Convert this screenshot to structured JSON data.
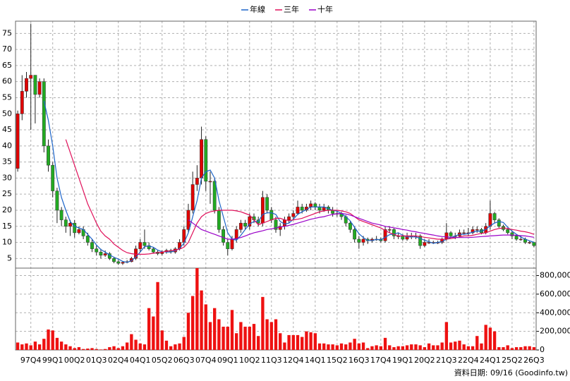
{
  "chart_data": {
    "type": "candlestick",
    "categories": [
      null,
      null,
      null,
      "97Q4",
      null,
      null,
      null,
      null,
      "99Q1",
      null,
      null,
      null,
      null,
      "00Q2",
      null,
      null,
      null,
      null,
      "01Q3",
      null,
      null,
      null,
      null,
      "02Q4",
      null,
      null,
      null,
      null,
      "04Q1",
      null,
      null,
      null,
      null,
      "05Q2",
      null,
      null,
      null,
      null,
      "06Q3",
      null,
      null,
      null,
      null,
      "07Q4",
      null,
      null,
      null,
      null,
      "09Q1",
      null,
      null,
      null,
      null,
      "10Q2",
      null,
      null,
      null,
      null,
      "11Q3",
      null,
      null,
      null,
      null,
      "12Q4",
      null,
      null,
      null,
      null,
      "14Q1",
      null,
      null,
      null,
      null,
      "15Q2",
      null,
      null,
      null,
      null,
      "16Q3",
      null,
      null,
      null,
      null,
      "17Q4",
      null,
      null,
      null,
      null,
      "19Q1",
      null,
      null,
      null,
      null,
      "20Q2",
      null,
      null,
      null,
      null,
      "21Q3",
      null,
      null,
      null,
      null,
      "22Q4",
      null,
      null,
      null,
      null,
      "24Q1",
      null,
      null,
      null,
      null,
      "25Q2",
      null,
      null,
      null,
      null,
      "26Q3"
    ],
    "open": [
      33,
      50,
      57,
      61,
      62,
      56,
      60,
      40,
      34,
      26,
      20,
      17,
      15,
      16,
      13,
      14,
      12,
      10,
      8,
      7,
      6,
      6.5,
      5,
      4,
      3.5,
      3.8,
      4,
      5,
      8,
      10,
      9,
      8,
      7,
      6.5,
      7,
      7.5,
      7,
      8,
      10,
      14,
      20,
      28,
      30,
      42,
      29,
      29,
      20,
      14,
      10,
      8,
      11,
      14,
      16,
      15,
      18,
      17,
      16,
      24,
      20,
      17,
      14,
      15,
      17,
      18,
      19,
      21,
      20,
      21,
      22,
      21,
      20,
      21,
      20,
      19,
      19,
      18,
      16,
      14,
      11,
      10,
      11,
      10.5,
      11,
      11,
      10.5,
      14,
      14,
      12,
      12,
      11,
      12,
      12,
      12,
      9,
      10,
      10,
      10,
      10,
      11,
      13,
      12,
      12,
      13,
      13,
      13,
      14,
      14,
      13,
      15,
      19,
      17,
      15,
      14,
      13,
      12,
      11,
      11,
      10,
      10
    ],
    "high": [
      51,
      62,
      63,
      78,
      62,
      61,
      61,
      42,
      35,
      27,
      21,
      18,
      17,
      17,
      15,
      15,
      13,
      11,
      9,
      8,
      7.5,
      7,
      5.5,
      4.5,
      4.2,
      4.5,
      5.5,
      9,
      11,
      14,
      10,
      8.5,
      7.5,
      7.5,
      8,
      8,
      8.5,
      11,
      15,
      22,
      32,
      34,
      46,
      43,
      32,
      30,
      21,
      15,
      11,
      12,
      15,
      17,
      17,
      19,
      19,
      18,
      26,
      25,
      21,
      18,
      16,
      18,
      19,
      20,
      23,
      22,
      22,
      23,
      22.5,
      22,
      22,
      21.5,
      21,
      20,
      19.5,
      18.5,
      16.5,
      15,
      12,
      12,
      11.5,
      11.5,
      12,
      11.5,
      15,
      15,
      14.5,
      13,
      12.5,
      13,
      13,
      13,
      12.5,
      11,
      11,
      10.5,
      10.5,
      11.5,
      16,
      13.5,
      13,
      14,
      14,
      14.5,
      15,
      15,
      14.5,
      16,
      23,
      19.5,
      17.5,
      15.5,
      14.5,
      13.5,
      12.5,
      12,
      11.5,
      10.5,
      10
    ],
    "low": [
      32,
      48,
      55,
      45,
      47,
      55,
      38,
      32,
      24,
      16,
      15,
      13,
      12,
      11.5,
      12.5,
      11,
      9,
      7,
      6,
      5,
      5.5,
      4.5,
      3.5,
      3,
      3,
      3.5,
      3.8,
      4.5,
      7,
      8,
      7.5,
      6.5,
      6,
      6,
      6.5,
      6.5,
      6.5,
      7.5,
      9,
      13,
      19,
      26,
      28,
      26,
      22,
      19,
      13,
      9,
      6,
      7.5,
      10,
      13,
      14,
      14,
      16,
      15,
      15,
      19,
      16,
      13,
      12,
      14,
      16,
      17,
      18.5,
      19,
      19.5,
      20,
      20,
      19,
      19.5,
      19,
      18,
      18,
      17,
      15,
      13,
      10,
      8,
      9,
      9.5,
      10,
      10.5,
      10,
      10,
      13,
      11,
      11,
      10.5,
      10.5,
      11,
      11,
      8,
      8.5,
      9.5,
      9.5,
      9.5,
      9.5,
      10.5,
      11.5,
      11,
      11.5,
      12.5,
      12,
      12.5,
      13,
      12.5,
      12.5,
      14,
      16,
      14.5,
      13.5,
      12.5,
      11,
      10.5,
      10.5,
      9.5,
      9.5,
      8.5
    ],
    "close": [
      50,
      57,
      61,
      62,
      56,
      60,
      40,
      34,
      26,
      20,
      17,
      15,
      16,
      13,
      14,
      12,
      10,
      8,
      7,
      6,
      6.5,
      5,
      4,
      3.5,
      3.8,
      4,
      5,
      8,
      10,
      9,
      8,
      7,
      6.5,
      7,
      7.5,
      7,
      8,
      10,
      14,
      20,
      28,
      30,
      42,
      29,
      29,
      20,
      14,
      10,
      8,
      11,
      14,
      16,
      15,
      18,
      17,
      16,
      24,
      20,
      17,
      14,
      15,
      17,
      18,
      19,
      21,
      20,
      21,
      22,
      21,
      20,
      21,
      20,
      19,
      19,
      18,
      16,
      14,
      11,
      10,
      11,
      10.5,
      11,
      11,
      10.5,
      14,
      14,
      12,
      12,
      11,
      12,
      12,
      12,
      9,
      10,
      10,
      10,
      10,
      11,
      13,
      12,
      12,
      13,
      13,
      13,
      14,
      14,
      13,
      15,
      19,
      17,
      15,
      14,
      13,
      12,
      11,
      11,
      10,
      10,
      9
    ],
    "up_color": "#e00000",
    "down_color": "#22aa22",
    "series": [
      {
        "name": "年線",
        "color": "#1c64c8",
        "values": [
          null,
          null,
          null,
          null,
          null,
          null,
          54,
          48,
          40,
          30,
          24,
          20,
          16.5,
          15,
          14.5,
          14,
          12.5,
          11,
          9.2,
          7.8,
          7,
          6.1,
          5.4,
          4.8,
          4.1,
          3.8,
          4.3,
          5.4,
          7,
          8.7,
          8.9,
          8.5,
          7.6,
          7.1,
          7,
          7,
          7.4,
          8.1,
          9.8,
          13,
          18,
          23,
          30,
          32,
          32.5,
          30,
          23,
          18,
          13,
          11,
          10.7,
          12.2,
          14,
          15.7,
          16.5,
          16.5,
          18.7,
          19.2,
          19.2,
          18.7,
          16.5,
          15.7,
          16,
          17.2,
          18.7,
          19.5,
          20.2,
          21,
          21,
          21,
          21,
          20.5,
          20,
          19.7,
          19,
          18,
          16.7,
          14.7,
          12.7,
          11.5,
          10.6,
          10.6,
          10.9,
          10.8,
          11.6,
          12.4,
          12.6,
          13,
          12.2,
          11.7,
          11.7,
          11.7,
          11.2,
          10.7,
          10.2,
          9.7,
          10,
          10.2,
          11,
          11.5,
          12,
          12.5,
          12.5,
          12.7,
          13.2,
          13.5,
          13.5,
          14,
          15.2,
          16,
          16.5,
          16.2,
          14.7,
          13.5,
          12.5,
          11.7,
          11,
          10.5,
          10
        ]
      },
      {
        "name": "三年",
        "color": "#e0105a",
        "values": [
          null,
          null,
          null,
          null,
          null,
          null,
          null,
          null,
          null,
          null,
          null,
          42,
          38,
          34,
          30,
          26,
          22,
          19,
          16,
          13.5,
          12,
          11,
          9.5,
          8.5,
          7.5,
          6.8,
          6.5,
          6.3,
          6.3,
          6.3,
          6.4,
          6.6,
          6.8,
          7,
          7.2,
          7.4,
          7.6,
          7.9,
          8.5,
          10,
          13,
          16,
          18,
          19,
          19.5,
          19.8,
          20,
          20,
          20,
          20,
          19.8,
          19.5,
          19,
          18.5,
          17,
          15.5,
          16,
          16.5,
          17,
          17.5,
          17.5,
          17,
          16.8,
          17,
          17.2,
          17.5,
          18,
          18.5,
          19,
          19.5,
          19.8,
          20,
          20,
          20,
          19.8,
          19.5,
          19,
          18,
          17,
          16.5,
          16,
          15.5,
          15,
          14.5,
          13.7,
          13,
          12.5,
          12,
          12,
          12,
          12,
          12,
          11.8,
          11.6,
          11.4,
          11.2,
          11,
          11,
          11,
          11.2,
          11.4,
          11.7,
          12,
          12,
          12.2,
          12.5,
          12.8,
          13,
          13.5,
          14,
          14.3,
          14.5,
          14.3,
          14,
          13.8,
          13.5,
          13.3,
          13,
          12.5
        ]
      },
      {
        "name": "十年",
        "color": "#9a00c8",
        "values": [
          null,
          null,
          null,
          null,
          null,
          null,
          null,
          null,
          null,
          null,
          null,
          null,
          null,
          null,
          null,
          null,
          null,
          null,
          null,
          null,
          null,
          null,
          null,
          null,
          null,
          null,
          null,
          null,
          null,
          null,
          null,
          null,
          null,
          null,
          null,
          null,
          null,
          null,
          null,
          17,
          16,
          15,
          14,
          13.5,
          13,
          12.5,
          12,
          11.5,
          11,
          11,
          11.2,
          11.5,
          12,
          12.5,
          13,
          13.3,
          13.6,
          14,
          14.2,
          14.5,
          14.8,
          15,
          15.3,
          15.6,
          16,
          16.4,
          16.8,
          17.2,
          17.5,
          17.8,
          18,
          18.4,
          18.7,
          18.9,
          19,
          18.8,
          18.5,
          18,
          17.5,
          17,
          16.5,
          16,
          15.7,
          15.4,
          15,
          14.8,
          14.5,
          14.3,
          14,
          13.8,
          13.5,
          13.3,
          13,
          12.8,
          12.5,
          12.3,
          12,
          11.8,
          11.7,
          11.6,
          11.5,
          11.5,
          11.5,
          11.5,
          11.6,
          11.7,
          11.8,
          11.9,
          12,
          12.1,
          12.2,
          12.3,
          12.3,
          12.3,
          12.2,
          12.1,
          12,
          11.8,
          11.6
        ]
      }
    ],
    "ylim": [
      2,
      78.8
    ],
    "yticks": [
      5,
      10,
      15,
      20,
      25,
      30,
      35,
      40,
      45,
      50,
      55,
      60,
      65,
      70,
      75
    ],
    "volume": {
      "color": "#ee1111",
      "ylim": [
        0,
        880000
      ],
      "yticks": [
        0,
        {
          "value": 200000,
          "label": "200,000"
        },
        {
          "value": 400000,
          "label": "400,000"
        },
        {
          "value": 600000,
          "label": "600,000"
        },
        {
          "value": 800000,
          "label": "800,000"
        }
      ],
      "values": [
        80000,
        60000,
        70000,
        50000,
        90000,
        60000,
        120000,
        220000,
        210000,
        130000,
        90000,
        60000,
        40000,
        20000,
        30000,
        10000,
        15000,
        20000,
        10000,
        5000,
        10000,
        30000,
        40000,
        20000,
        40000,
        80000,
        170000,
        110000,
        70000,
        60000,
        450000,
        360000,
        730000,
        210000,
        100000,
        40000,
        60000,
        70000,
        140000,
        400000,
        580000,
        880000,
        640000,
        490000,
        300000,
        450000,
        330000,
        250000,
        250000,
        430000,
        180000,
        300000,
        250000,
        250000,
        280000,
        150000,
        570000,
        330000,
        300000,
        330000,
        180000,
        80000,
        160000,
        160000,
        160000,
        140000,
        200000,
        190000,
        180000,
        70000,
        70000,
        60000,
        60000,
        50000,
        70000,
        60000,
        80000,
        120000,
        70000,
        80000,
        20000,
        40000,
        50000,
        40000,
        130000,
        50000,
        30000,
        40000,
        40000,
        50000,
        60000,
        60000,
        50000,
        30000,
        70000,
        50000,
        50000,
        80000,
        300000,
        80000,
        90000,
        100000,
        60000,
        40000,
        40000,
        150000,
        70000,
        270000,
        240000,
        200000,
        30000,
        30000,
        50000,
        20000,
        30000,
        30000,
        40000,
        40000,
        30000
      ]
    },
    "grid": true,
    "legend": "top",
    "note": "資料日期: 09/16 (Goodinfo.tw)"
  }
}
